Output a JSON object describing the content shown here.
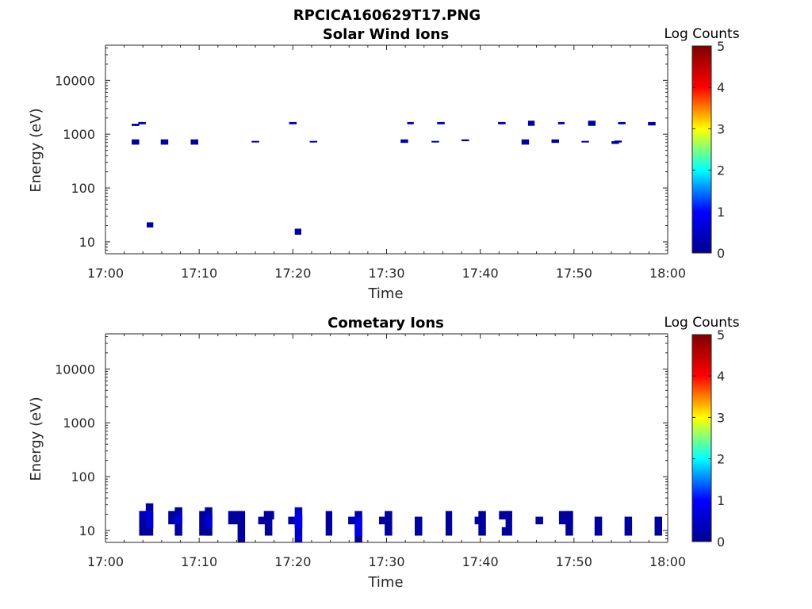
{
  "figure_title": "RPCICA160629T17.PNG",
  "colors": {
    "axis": "#262626",
    "colormap": [
      "#00008f",
      "#0000ff",
      "#00ffff",
      "#ffff00",
      "#ff0000",
      "#800000"
    ]
  },
  "chart_data": [
    {
      "type": "heatmap",
      "title": "Solar Wind Ions",
      "xlabel": "Time",
      "ylabel": "Energy (eV)",
      "yscale": "log",
      "xlim": [
        "17:00",
        "18:00"
      ],
      "ylim": [
        6,
        45000
      ],
      "x_ticks": [
        "17:00",
        "17:10",
        "17:20",
        "17:30",
        "17:40",
        "17:50",
        "18:00"
      ],
      "y_ticks": [
        "10",
        "100",
        "1000",
        "10000"
      ],
      "colorbar": {
        "label": "Log Counts",
        "range": [
          0,
          5
        ],
        "ticks": [
          "0",
          "1",
          "2",
          "3",
          "4",
          "5"
        ]
      },
      "cells": [
        {
          "t0": "17:02.8",
          "t1": "17:03.6",
          "e0": 1420,
          "e1": 1560,
          "v": 0.1
        },
        {
          "t0": "17:03.5",
          "t1": "17:04.3",
          "e0": 1530,
          "e1": 1680,
          "v": 0.1
        },
        {
          "t0": "17:02.8",
          "t1": "17:03.6",
          "e0": 640,
          "e1": 800,
          "v": 0.1
        },
        {
          "t0": "17:04.4",
          "t1": "17:05.1",
          "e0": 18.5,
          "e1": 23,
          "v": 0.1
        },
        {
          "t0": "17:05.9",
          "t1": "17:06.7",
          "e0": 640,
          "e1": 800,
          "v": 0.1
        },
        {
          "t0": "17:09.1",
          "t1": "17:09.9",
          "e0": 640,
          "e1": 800,
          "v": 0.1
        },
        {
          "t0": "17:15.6",
          "t1": "17:16.4",
          "e0": 700,
          "e1": 750,
          "v": 0.1
        },
        {
          "t0": "17:19.6",
          "t1": "17:20.4",
          "e0": 1530,
          "e1": 1680,
          "v": 0.1
        },
        {
          "t0": "17:20.2",
          "t1": "17:20.9",
          "e0": 13.5,
          "e1": 17.5,
          "v": 0.1
        },
        {
          "t0": "17:21.8",
          "t1": "17:22.6",
          "e0": 700,
          "e1": 750,
          "v": 0.1
        },
        {
          "t0": "17:31.5",
          "t1": "17:32.3",
          "e0": 690,
          "e1": 800,
          "v": 0.1
        },
        {
          "t0": "17:32.2",
          "t1": "17:32.9",
          "e0": 1530,
          "e1": 1680,
          "v": 0.1
        },
        {
          "t0": "17:34.8",
          "t1": "17:35.6",
          "e0": 700,
          "e1": 750,
          "v": 0.1
        },
        {
          "t0": "17:35.4",
          "t1": "17:36.2",
          "e0": 1530,
          "e1": 1680,
          "v": 0.1
        },
        {
          "t0": "17:38.0",
          "t1": "17:38.8",
          "e0": 740,
          "e1": 800,
          "v": 0.1
        },
        {
          "t0": "17:41.9",
          "t1": "17:42.7",
          "e0": 1530,
          "e1": 1680,
          "v": 0.1
        },
        {
          "t0": "17:44.4",
          "t1": "17:45.2",
          "e0": 640,
          "e1": 800,
          "v": 0.1
        },
        {
          "t0": "17:45.1",
          "t1": "17:45.8",
          "e0": 1430,
          "e1": 1780,
          "v": 0.1
        },
        {
          "t0": "17:47.6",
          "t1": "17:48.4",
          "e0": 690,
          "e1": 800,
          "v": 0.1
        },
        {
          "t0": "17:48.3",
          "t1": "17:49.0",
          "e0": 1530,
          "e1": 1680,
          "v": 0.1
        },
        {
          "t0": "17:50.8",
          "t1": "17:51.6",
          "e0": 700,
          "e1": 750,
          "v": 0.1
        },
        {
          "t0": "17:51.5",
          "t1": "17:52.3",
          "e0": 1430,
          "e1": 1780,
          "v": 0.1
        },
        {
          "t0": "17:54.0",
          "t1": "17:54.8",
          "e0": 660,
          "e1": 740,
          "v": 0.1
        },
        {
          "t0": "17:54.3",
          "t1": "17:55.1",
          "e0": 700,
          "e1": 760,
          "v": 0.1
        },
        {
          "t0": "17:54.7",
          "t1": "17:55.5",
          "e0": 1530,
          "e1": 1680,
          "v": 0.1
        },
        {
          "t0": "17:57.9",
          "t1": "17:58.7",
          "e0": 1450,
          "e1": 1680,
          "v": 0.1
        }
      ]
    },
    {
      "type": "heatmap",
      "title": "Cometary Ions",
      "xlabel": "Time",
      "ylabel": "Energy (eV)",
      "yscale": "log",
      "xlim": [
        "17:00",
        "18:00"
      ],
      "ylim": [
        6,
        45000
      ],
      "x_ticks": [
        "17:00",
        "17:10",
        "17:20",
        "17:30",
        "17:40",
        "17:50",
        "18:00"
      ],
      "y_ticks": [
        "10",
        "100",
        "1000",
        "10000"
      ],
      "colorbar": {
        "label": "Log Counts",
        "range": [
          0,
          5
        ],
        "ticks": [
          "0",
          "1",
          "2",
          "3",
          "4",
          "5"
        ]
      },
      "cells": [
        {
          "t0": "17:03.6",
          "t1": "17:05.1",
          "e0": 8,
          "e1": 23,
          "v": 0.1
        },
        {
          "t0": "17:04.3",
          "t1": "17:05.1",
          "e0": 23,
          "e1": 32,
          "v": 0.1
        },
        {
          "t0": "17:04.3",
          "t1": "17:05.1",
          "e0": 11,
          "e1": 23,
          "v": 0.6
        },
        {
          "t0": "17:03.6",
          "t1": "17:04.3",
          "e0": 16,
          "e1": 23,
          "v": 0.4
        },
        {
          "t0": "17:06.7",
          "t1": "17:07.5",
          "e0": 13,
          "e1": 23,
          "v": 0.1
        },
        {
          "t0": "17:07.4",
          "t1": "17:08.2",
          "e0": 8,
          "e1": 27,
          "v": 0.1
        },
        {
          "t0": "17:07.4",
          "t1": "17:08.2",
          "e0": 13,
          "e1": 20,
          "v": 0.6
        },
        {
          "t0": "17:10.0",
          "t1": "17:10.7",
          "e0": 8,
          "e1": 23,
          "v": 0.1
        },
        {
          "t0": "17:10.6",
          "t1": "17:11.4",
          "e0": 8,
          "e1": 27,
          "v": 0.1
        },
        {
          "t0": "17:10.6",
          "t1": "17:11.4",
          "e0": 11,
          "e1": 20,
          "v": 0.6
        },
        {
          "t0": "17:13.1",
          "t1": "17:14.6",
          "e0": 13,
          "e1": 23,
          "v": 0.1
        },
        {
          "t0": "17:14.1",
          "t1": "17:14.9",
          "e0": 6,
          "e1": 23,
          "v": 0.1
        },
        {
          "t0": "17:16.3",
          "t1": "17:17.1",
          "e0": 13,
          "e1": 18,
          "v": 0.1
        },
        {
          "t0": "17:16.9",
          "t1": "17:18.0",
          "e0": 16,
          "e1": 23,
          "v": 0.1
        },
        {
          "t0": "17:17.0",
          "t1": "17:17.8",
          "e0": 8,
          "e1": 23,
          "v": 0.1
        },
        {
          "t0": "17:19.5",
          "t1": "17:20.3",
          "e0": 13,
          "e1": 18,
          "v": 0.1
        },
        {
          "t0": "17:20.2",
          "t1": "17:21.0",
          "e0": 6,
          "e1": 27,
          "v": 0.5
        },
        {
          "t0": "17:20.2",
          "t1": "17:21.0",
          "e0": 11,
          "e1": 20,
          "v": 0.8
        },
        {
          "t0": "17:23.5",
          "t1": "17:24.2",
          "e0": 8,
          "e1": 23,
          "v": 0.1
        },
        {
          "t0": "17:25.9",
          "t1": "17:26.7",
          "e0": 13,
          "e1": 18,
          "v": 0.1
        },
        {
          "t0": "17:26.6",
          "t1": "17:27.4",
          "e0": 6,
          "e1": 23,
          "v": 0.1
        },
        {
          "t0": "17:26.6",
          "t1": "17:27.4",
          "e0": 8,
          "e1": 18,
          "v": 0.8
        },
        {
          "t0": "17:29.2",
          "t1": "17:29.9",
          "e0": 13,
          "e1": 18,
          "v": 0.1
        },
        {
          "t0": "17:29.8",
          "t1": "17:30.6",
          "e0": 8,
          "e1": 23,
          "v": 0.1
        },
        {
          "t0": "17:33.0",
          "t1": "17:33.8",
          "e0": 8,
          "e1": 18,
          "v": 0.1
        },
        {
          "t0": "17:36.3",
          "t1": "17:37.0",
          "e0": 8,
          "e1": 23,
          "v": 0.1
        },
        {
          "t0": "17:39.4",
          "t1": "17:40.2",
          "e0": 13,
          "e1": 18,
          "v": 0.1
        },
        {
          "t0": "17:39.8",
          "t1": "17:40.6",
          "e0": 8,
          "e1": 23,
          "v": 0.1
        },
        {
          "t0": "17:42.0",
          "t1": "17:43.4",
          "e0": 16,
          "e1": 23,
          "v": 0.1
        },
        {
          "t0": "17:42.3",
          "t1": "17:43.0",
          "e0": 8,
          "e1": 11.5,
          "v": 0.1
        },
        {
          "t0": "17:42.7",
          "t1": "17:43.4",
          "e0": 8,
          "e1": 23,
          "v": 0.1
        },
        {
          "t0": "17:45.9",
          "t1": "17:46.7",
          "e0": 13,
          "e1": 18,
          "v": 0.1
        },
        {
          "t0": "17:48.4",
          "t1": "17:49.9",
          "e0": 13,
          "e1": 23,
          "v": 0.1
        },
        {
          "t0": "17:49.1",
          "t1": "17:49.9",
          "e0": 8,
          "e1": 23,
          "v": 0.1
        },
        {
          "t0": "17:52.2",
          "t1": "17:53.0",
          "e0": 8,
          "e1": 18,
          "v": 0.1
        },
        {
          "t0": "17:55.4",
          "t1": "17:56.2",
          "e0": 8,
          "e1": 18,
          "v": 0.1
        },
        {
          "t0": "17:58.6",
          "t1": "17:59.4",
          "e0": 8,
          "e1": 18,
          "v": 0.1
        }
      ]
    }
  ]
}
